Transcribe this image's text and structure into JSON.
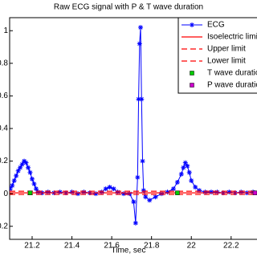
{
  "chart_data": {
    "type": "line",
    "title": "Raw ECG signal with P & T  wave duration",
    "xlabel": "Time, sec",
    "xlim": [
      21.087,
      22.33
    ],
    "ylim": [
      -0.28,
      1.08
    ],
    "xticks": [
      21.2,
      21.4,
      21.6,
      21.8,
      22,
      22.2
    ],
    "yticks": [
      -0.2,
      0,
      0.2,
      0.4,
      0.6,
      0.8,
      1
    ],
    "legend": "upper right",
    "series": [
      {
        "name": "ECG",
        "color": "#0000ff",
        "marker": "star",
        "x": [
          21.09,
          21.1,
          21.11,
          21.12,
          21.13,
          21.14,
          21.15,
          21.16,
          21.17,
          21.18,
          21.19,
          21.2,
          21.21,
          21.22,
          21.23,
          21.25,
          21.28,
          21.31,
          21.34,
          21.37,
          21.4,
          21.43,
          21.46,
          21.49,
          21.52,
          21.55,
          21.57,
          21.59,
          21.61,
          21.63,
          21.66,
          21.69,
          21.71,
          21.72,
          21.73,
          21.735,
          21.74,
          21.745,
          21.75,
          21.755,
          21.76,
          21.77,
          21.79,
          21.82,
          21.85,
          21.88,
          21.91,
          21.93,
          21.95,
          21.96,
          21.97,
          21.98,
          21.99,
          22.0,
          22.02,
          22.04,
          22.07,
          22.1,
          22.13,
          22.16,
          22.19,
          22.22,
          22.25,
          22.28,
          22.31
        ],
        "values": [
          0.03,
          0.05,
          0.08,
          0.11,
          0.14,
          0.16,
          0.18,
          0.2,
          0.19,
          0.16,
          0.13,
          0.09,
          0.06,
          0.03,
          0.01,
          0.005,
          0.01,
          0.005,
          0.01,
          0.005,
          0.01,
          0,
          0.01,
          0.005,
          0,
          0.01,
          0.03,
          0.04,
          0.03,
          0.01,
          0,
          0,
          -0.05,
          -0.18,
          0.1,
          0.58,
          0.92,
          1.02,
          0.58,
          0.2,
          0.02,
          -0.02,
          -0.04,
          -0.02,
          0,
          0.01,
          0.03,
          0.07,
          0.12,
          0.16,
          0.19,
          0.17,
          0.13,
          0.08,
          0.04,
          0.02,
          0.01,
          0.01,
          0.01,
          0.005,
          0.01,
          0.005,
          0.01,
          0.005,
          0.01
        ]
      },
      {
        "name": "Isoelectric limit",
        "color": "#ff0000",
        "style": "solid",
        "value": 0.005
      },
      {
        "name": "Upper limit",
        "color": "#ff0000",
        "style": "dashed",
        "value": 0.015
      },
      {
        "name": "Lower limit",
        "color": "#ff0000",
        "style": "dashed",
        "value": -0.005
      },
      {
        "name": "T wave duration",
        "color": "#00cc00",
        "marker": "square",
        "x": [
          21.19,
          21.93
        ],
        "values": [
          0.005,
          0.005
        ]
      },
      {
        "name": "P wave duration",
        "color": "#cc00cc",
        "marker": "square",
        "x": [
          22.32
        ],
        "values": [
          0.005
        ]
      }
    ]
  }
}
